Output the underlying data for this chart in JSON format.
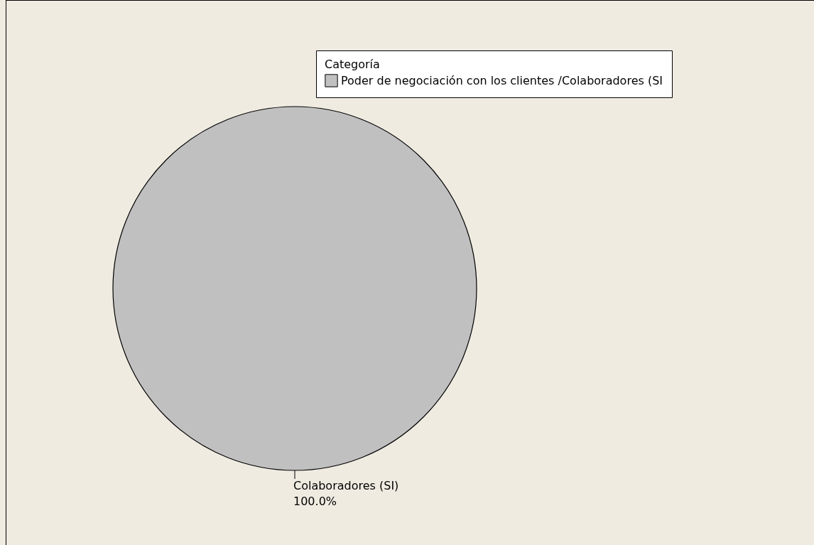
{
  "chart_data": {
    "type": "pie",
    "legend_title": "Categoría",
    "categories": [
      "Poder de negociación con los clientes /Colaboradores (SI"
    ],
    "values": [
      100
    ],
    "colors": [
      "#c0c0c0"
    ],
    "value_labels": [
      "100.0%"
    ],
    "annotations": [
      "Colaboradores (SI)"
    ],
    "legend": "top right"
  }
}
